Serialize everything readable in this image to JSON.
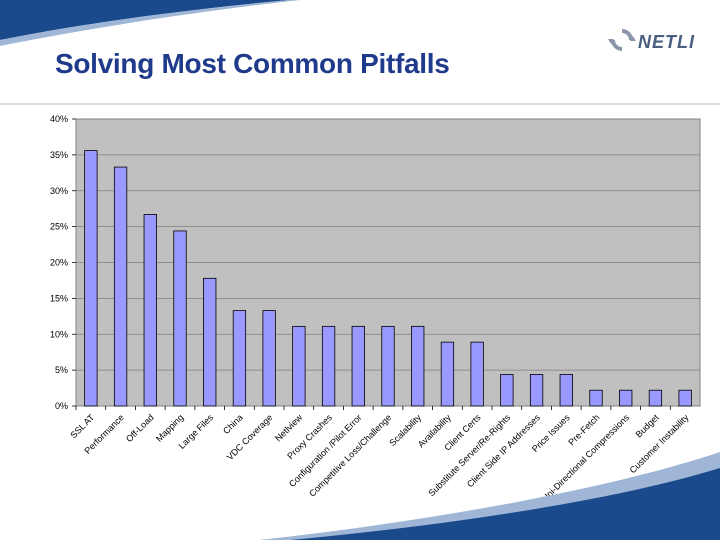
{
  "slide": {
    "title": "Solving Most Common Pitfalls",
    "logo_text": "NETLI",
    "colors": {
      "title": "#1f3a8a",
      "swoosh": "#1b4a8c",
      "bar_fill": "#9999ff",
      "plot_bg": "#c0c0c0"
    }
  },
  "chart_data": {
    "type": "bar",
    "title": "",
    "xlabel": "",
    "ylabel": "",
    "ylim": [
      0,
      40
    ],
    "y_ticks": [
      "0%",
      "5%",
      "10%",
      "15%",
      "20%",
      "25%",
      "30%",
      "35%",
      "40%"
    ],
    "grid": true,
    "categories": [
      "SSL AT",
      "Performance",
      "Off-Load",
      "Mapping",
      "Large Files",
      "China",
      "VDC Coverage",
      "Netlview",
      "Proxy Crashes",
      "Configuration /Pilot Error",
      "Competitive Loss/Challenge",
      "Scalability",
      "Availability",
      "Client Certs",
      "Substitute Server/Re-Rights",
      "Client Side IP Addresses",
      "Price Issues",
      "Pre-Fetch",
      "Uni-Directional Compressions",
      "Budget",
      "Customer Instability"
    ],
    "values": [
      35.6,
      33.3,
      26.7,
      24.4,
      17.8,
      13.3,
      13.3,
      11.1,
      11.1,
      11.1,
      11.1,
      11.1,
      8.9,
      8.9,
      4.4,
      4.4,
      4.4,
      2.2,
      2.2,
      2.2,
      2.2
    ]
  }
}
